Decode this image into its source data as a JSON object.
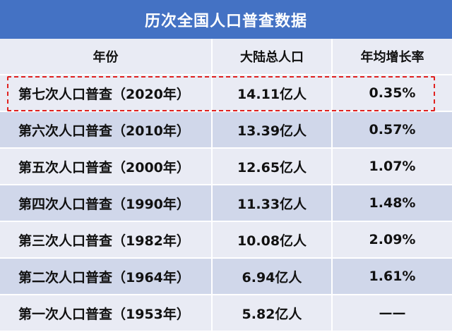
{
  "chart_data": {
    "type": "table",
    "title": "历次全国人口普查数据",
    "columns": [
      "年份",
      "大陆总人口",
      "年均增长率"
    ],
    "rows": [
      {
        "census": "第七次人口普查（2020年）",
        "population": "14.11亿人",
        "growth": "0.35%"
      },
      {
        "census": "第六次人口普查（2010年）",
        "population": "13.39亿人",
        "growth": "0.57%"
      },
      {
        "census": "第五次人口普查（2000年）",
        "population": "12.65亿人",
        "growth": "1.07%"
      },
      {
        "census": "第四次人口普查（1990年）",
        "population": "11.33亿人",
        "growth": "1.48%"
      },
      {
        "census": "第三次人口普查（1982年）",
        "population": "10.08亿人",
        "growth": "2.09%"
      },
      {
        "census": "第二次人口普查（1964年）",
        "population": "6.94亿人",
        "growth": "1.61%"
      },
      {
        "census": "第一次人口普查（1953年）",
        "population": "5.82亿人",
        "growth": "——"
      }
    ],
    "highlighted_row": 0,
    "colors": {
      "title_bg": "#4472c4",
      "row_light": "#e9ebf4",
      "row_dark": "#d0d7ea",
      "highlight_border": "#e0211f"
    }
  }
}
